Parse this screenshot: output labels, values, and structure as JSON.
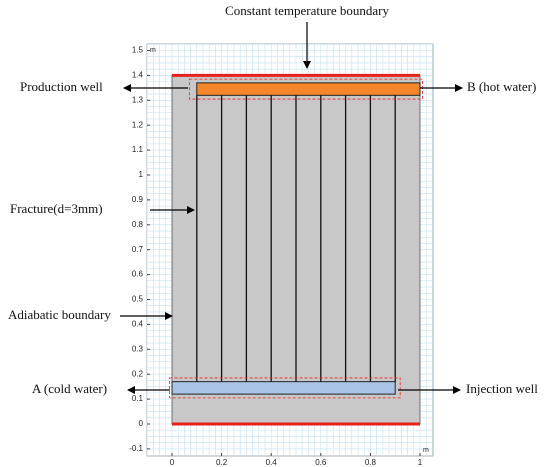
{
  "annotations": {
    "top": "Constant temperature boundary",
    "production": "Production well",
    "hot": "B (hot water)",
    "fracture": "Fracture(d=3mm)",
    "adiabatic": "Adiabatic boundary",
    "cold": "A (cold water)",
    "injection": "Injection well"
  },
  "axes": {
    "x_unit": "m",
    "y_unit": "m",
    "xticks": [
      0,
      0.2,
      0.4,
      0.6,
      0.8,
      1
    ],
    "yticks": [
      -0.1,
      0,
      0.1,
      0.2,
      0.3,
      0.4,
      0.5,
      0.6,
      0.7,
      0.8,
      0.9,
      1,
      1.1,
      1.2,
      1.3,
      1.4,
      1.5
    ]
  }
}
